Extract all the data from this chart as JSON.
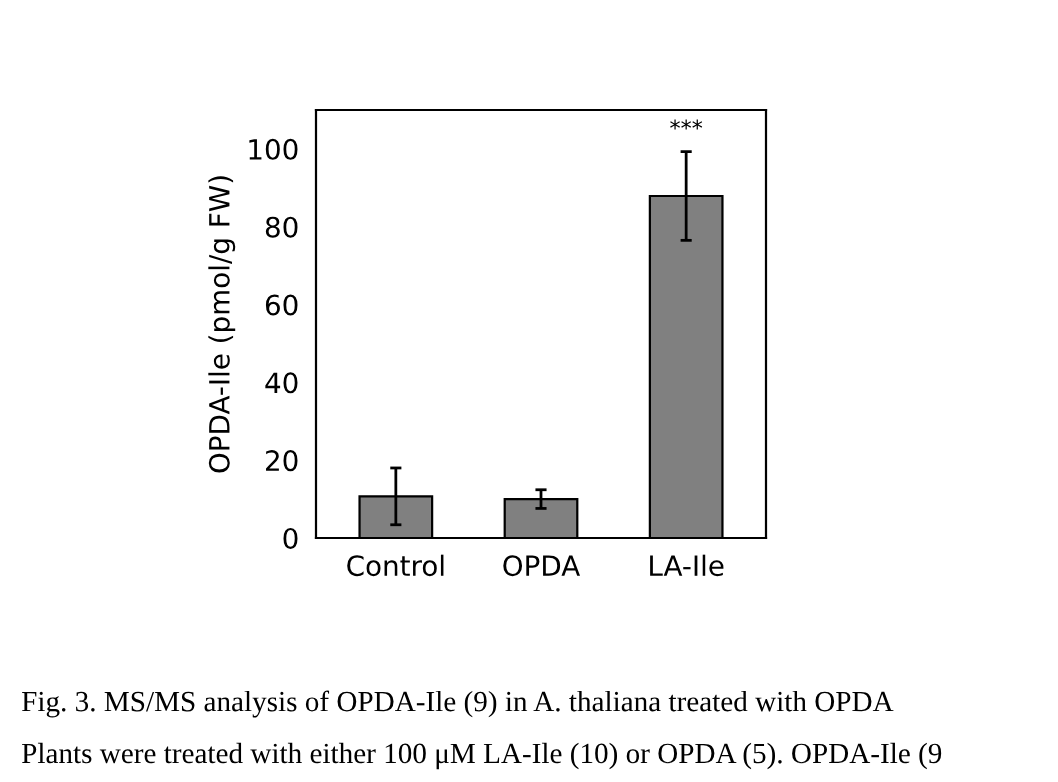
{
  "chart_data": {
    "type": "bar",
    "ylabel": "OPDA-Ile (pmol/g FW)",
    "categories": [
      "Control",
      "OPDA",
      "LA-Ile"
    ],
    "values": [
      10.7,
      10.0,
      87.9
    ],
    "errors": [
      7.3,
      2.4,
      11.4
    ],
    "color": "#808080",
    "ylim": [
      0,
      110
    ],
    "yticks": [
      0,
      20,
      40,
      60,
      80,
      100
    ],
    "grid": false,
    "legend": false,
    "annotations": [
      "***",
      "Fig. 3. MS/MS analysis of OPDA-Ile (9) in A. thaliana treated with OPDA",
      "Plants were treated with either 100 μM LA-Ile (10) or OPDA (5). OPDA-Ile (9"
    ]
  }
}
